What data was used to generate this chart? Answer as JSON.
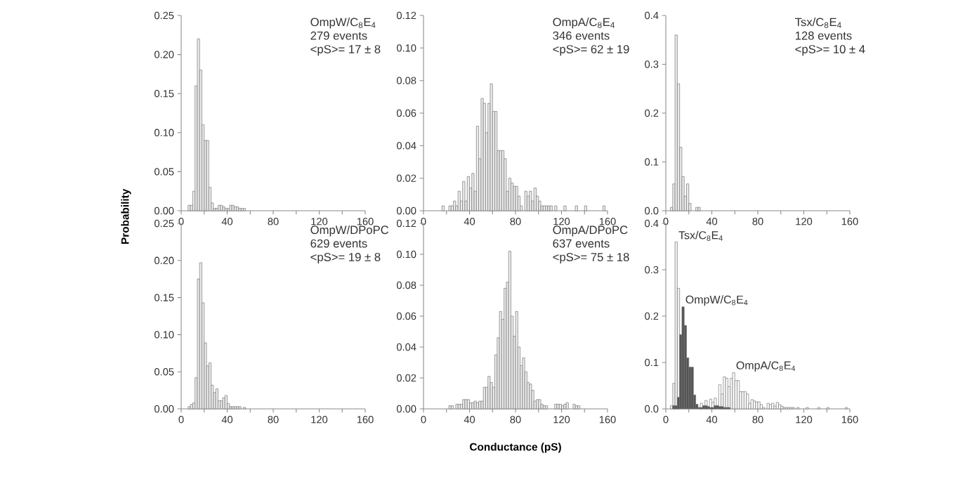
{
  "chart_data": [
    {
      "type": "histogram",
      "annotations": [
        "OmpW/C$_{8}$E$_{4}$",
        "279 events",
        "<pS>= 17 ± 8"
      ],
      "ylabel": "Probability",
      "color": "#ececec",
      "bins": [
        6,
        8,
        10,
        12,
        14,
        16,
        18,
        20,
        22,
        24,
        26,
        28,
        30,
        32,
        34,
        36,
        38,
        40,
        42,
        44,
        46,
        48,
        50,
        52,
        54,
        56
      ],
      "values": [
        0.007,
        0.007,
        0.025,
        0.16,
        0.22,
        0.18,
        0.11,
        0.09,
        0.09,
        0.03,
        0.01,
        0.003,
        0.003,
        0.007,
        0.007,
        0.005,
        0.003,
        0.003,
        0.007,
        0.007,
        0.005,
        0.005,
        0.003,
        0.003,
        0.003
      ],
      "xlim": [
        0,
        160
      ],
      "ylim": [
        0,
        0.25
      ],
      "xticks": [
        0,
        {
          "value": 20,
          "label": null
        },
        40,
        {
          "value": 60,
          "label": null
        },
        80,
        {
          "value": 100,
          "label": null
        },
        120,
        {
          "value": 140,
          "label": null
        },
        160
      ],
      "yticks": [
        {
          "value": 0,
          "label": "0.00"
        },
        {
          "value": 0.05,
          "label": "0.05"
        },
        {
          "value": 0.1,
          "label": "0.10"
        },
        {
          "value": 0.15,
          "label": "0.15"
        },
        {
          "value": 0.2,
          "label": "0.20"
        },
        {
          "value": 0.25,
          "label": "0.25"
        }
      ]
    },
    {
      "type": "histogram",
      "annotations": [
        "OmpA/C$_{8}$E$_{4}$",
        "346 events",
        "<pS>= 62 ± 19"
      ],
      "color": "#ececec",
      "bins": [
        14,
        16,
        18,
        20,
        22,
        24,
        26,
        28,
        30,
        32,
        34,
        36,
        38,
        40,
        42,
        44,
        46,
        48,
        50,
        52,
        54,
        56,
        58,
        60,
        62,
        64,
        66,
        68,
        70,
        72,
        74,
        76,
        78,
        80,
        82,
        84,
        86,
        88,
        90,
        92,
        94,
        96,
        98,
        100,
        102,
        104,
        106,
        108,
        110,
        112,
        114,
        116,
        118,
        120,
        122,
        124,
        126,
        128,
        130,
        132,
        134,
        136,
        138,
        140,
        142,
        144,
        146,
        148,
        150,
        152,
        154,
        156,
        158
      ],
      "values": [
        0,
        0.003,
        0,
        0,
        0.003,
        0.003,
        0.006,
        0.003,
        0.012,
        0.006,
        0.018,
        0.006,
        0.021,
        0.014,
        0.023,
        0.012,
        0.052,
        0.032,
        0.069,
        0.066,
        0.048,
        0.066,
        0.078,
        0.061,
        0.061,
        0.037,
        0.037,
        0.037,
        0.032,
        0.012,
        0.02,
        0.017,
        0.015,
        0.015,
        0.009,
        0.003,
        0,
        0.012,
        0.009,
        0.012,
        0.006,
        0.014,
        0.009,
        0.006,
        0.003,
        0.003,
        0.003,
        0.003,
        0.003,
        0,
        0.003,
        0,
        0,
        0,
        0.003,
        0,
        0,
        0,
        0,
        0.003,
        0,
        0,
        0,
        0.003,
        0,
        0,
        0,
        0,
        0,
        0,
        0,
        0.003
      ],
      "xlim": [
        0,
        160
      ],
      "ylim": [
        0,
        0.12
      ],
      "xticks": [
        0,
        {
          "value": 20,
          "label": null
        },
        40,
        {
          "value": 60,
          "label": null
        },
        80,
        {
          "value": 100,
          "label": null
        },
        120,
        {
          "value": 140,
          "label": null
        },
        160
      ],
      "yticks": [
        {
          "value": 0,
          "label": "0.00"
        },
        {
          "value": 0.02,
          "label": "0.02"
        },
        {
          "value": 0.04,
          "label": "0.04"
        },
        {
          "value": 0.06,
          "label": "0.06"
        },
        {
          "value": 0.08,
          "label": "0.08"
        },
        {
          "value": 0.1,
          "label": "0.10"
        },
        {
          "value": 0.12,
          "label": "0.12"
        }
      ]
    },
    {
      "type": "histogram",
      "annotations": [
        "Tsx/C$_{8}$E$_{4}$",
        "128 events",
        "<pS>= 10 ± 4"
      ],
      "color": "#ececec",
      "bins": [
        4,
        6,
        8,
        10,
        12,
        14,
        16,
        18,
        20,
        22,
        24,
        26,
        28,
        30
      ],
      "values": [
        0.007,
        0.055,
        0.36,
        0.26,
        0.13,
        0.07,
        0.03,
        0.055,
        0.015,
        0,
        0,
        0.007,
        0.007
      ],
      "xlim": [
        0,
        160
      ],
      "ylim": [
        0,
        0.4
      ],
      "xticks": [
        0,
        {
          "value": 20,
          "label": null
        },
        40,
        {
          "value": 60,
          "label": null
        },
        80,
        {
          "value": 100,
          "label": null
        },
        120,
        {
          "value": 140,
          "label": null
        },
        160
      ],
      "yticks": [
        {
          "value": 0,
          "label": "0.0"
        },
        {
          "value": 0.1,
          "label": "0.1"
        },
        {
          "value": 0.2,
          "label": "0.2"
        },
        {
          "value": 0.3,
          "label": "0.3"
        },
        {
          "value": 0.4,
          "label": "0.4"
        }
      ]
    },
    {
      "type": "histogram",
      "annotations": [
        "OmpW/DPoPC",
        "629 events",
        "<pS>= 19 ± 8"
      ],
      "color": "#ececec",
      "bins": [
        6,
        8,
        10,
        12,
        14,
        16,
        18,
        20,
        22,
        24,
        26,
        28,
        30,
        32,
        34,
        36,
        38,
        40,
        42,
        44,
        46,
        48,
        50,
        52,
        54,
        56
      ],
      "values": [
        0.003,
        0.006,
        0.008,
        0.042,
        0.175,
        0.197,
        0.143,
        0.089,
        0.058,
        0.062,
        0.032,
        0.022,
        0.027,
        0.011,
        0.011,
        0.015,
        0.018,
        0.007,
        0.003,
        0.003,
        0.003,
        0.003,
        0.003,
        0,
        0.002
      ],
      "xlim": [
        0,
        160
      ],
      "ylim": [
        0,
        0.25
      ],
      "xticks": [
        0,
        {
          "value": 20,
          "label": null
        },
        40,
        {
          "value": 60,
          "label": null
        },
        80,
        {
          "value": 100,
          "label": null
        },
        120,
        {
          "value": 140,
          "label": null
        },
        160
      ],
      "yticks": [
        {
          "value": 0,
          "label": "0.00"
        },
        {
          "value": 0.05,
          "label": "0.05"
        },
        {
          "value": 0.1,
          "label": "0.10"
        },
        {
          "value": 0.15,
          "label": "0.15"
        },
        {
          "value": 0.2,
          "label": "0.20"
        },
        {
          "value": 0.25,
          "label": "0.25"
        }
      ]
    },
    {
      "type": "histogram",
      "annotations": [
        "OmpA/DPoPC",
        "637 events",
        "<pS>= 75 ± 18"
      ],
      "xlabel": "Conductance (pS)",
      "color": "#ececec",
      "bins": [
        22,
        24,
        26,
        28,
        30,
        32,
        34,
        36,
        38,
        40,
        42,
        44,
        46,
        48,
        50,
        52,
        54,
        56,
        58,
        60,
        62,
        64,
        66,
        68,
        70,
        72,
        74,
        76,
        78,
        80,
        82,
        84,
        86,
        88,
        90,
        92,
        94,
        96,
        98,
        100,
        102,
        104,
        106,
        108,
        110,
        112,
        114,
        116,
        118,
        120,
        122,
        124,
        126,
        128,
        130,
        132,
        134,
        136,
        138
      ],
      "values": [
        0.002,
        0.002,
        0,
        0.003,
        0.003,
        0.003,
        0.006,
        0.006,
        0.006,
        0.004,
        0.004,
        0.005,
        0.004,
        0.005,
        0.005,
        0.014,
        0.014,
        0.021,
        0.017,
        0.014,
        0.035,
        0.046,
        0.063,
        0.058,
        0.078,
        0.082,
        0.102,
        0.06,
        0.047,
        0.063,
        0.04,
        0.028,
        0.033,
        0.024,
        0.017,
        0.016,
        0.012,
        0.005,
        0.006,
        0.006,
        0.003,
        0.002,
        0.002,
        0,
        0,
        0,
        0.003,
        0.003,
        0.003,
        0.002,
        0.003,
        0.004,
        0,
        0,
        0.003,
        0.002,
        0.002,
        0
      ],
      "xlim": [
        0,
        160
      ],
      "ylim": [
        0,
        0.12
      ],
      "xticks": [
        0,
        {
          "value": 20,
          "label": null
        },
        40,
        {
          "value": 60,
          "label": null
        },
        80,
        {
          "value": 100,
          "label": null
        },
        120,
        {
          "value": 140,
          "label": null
        },
        160
      ],
      "yticks": [
        {
          "value": 0,
          "label": "0.00"
        },
        {
          "value": 0.02,
          "label": "0.02"
        },
        {
          "value": 0.04,
          "label": "0.04"
        },
        {
          "value": 0.06,
          "label": "0.06"
        },
        {
          "value": 0.08,
          "label": "0.08"
        },
        {
          "value": 0.1,
          "label": "0.10"
        },
        {
          "value": 0.12,
          "label": "0.12"
        }
      ]
    },
    {
      "type": "histogram",
      "xlim": [
        0,
        160
      ],
      "ylim": [
        0,
        0.4
      ],
      "xticks": [
        0,
        {
          "value": 20,
          "label": null
        },
        40,
        {
          "value": 60,
          "label": null
        },
        80,
        {
          "value": 100,
          "label": null
        },
        120,
        {
          "value": 140,
          "label": null
        },
        160
      ],
      "yticks": [
        {
          "value": 0,
          "label": "0.0"
        },
        {
          "value": 0.1,
          "label": "0.1"
        },
        {
          "value": 0.2,
          "label": "0.2"
        },
        {
          "value": 0.3,
          "label": "0.3"
        },
        {
          "value": 0.4,
          "label": "0.4"
        }
      ],
      "bins": [
        4,
        6,
        8,
        10,
        12,
        14,
        16,
        18,
        20,
        22,
        24,
        26,
        28,
        30,
        32,
        34,
        36,
        38,
        40,
        42,
        44,
        46,
        48,
        50,
        52,
        54,
        56,
        58,
        60,
        62,
        64,
        66,
        68,
        70,
        72,
        74,
        76,
        78,
        80,
        82,
        84,
        86,
        88,
        90,
        92,
        94,
        96,
        98,
        100,
        102,
        104,
        106,
        108,
        110,
        112,
        114,
        116,
        118,
        120,
        122,
        124,
        126,
        128,
        130,
        132,
        134,
        136,
        138,
        140,
        142,
        144,
        146,
        148,
        150,
        152,
        154,
        156,
        158,
        160
      ],
      "series": [
        {
          "name": "Tsx/C$_{8}$E$_{4}$",
          "color": "#f2f2f2",
          "values": [
            0.007,
            0.055,
            0.36,
            0.26,
            null,
            null,
            null,
            null,
            null,
            0,
            0,
            null,
            null,
            null,
            null,
            null,
            null,
            null,
            null,
            null,
            null,
            null,
            null,
            null,
            null,
            null,
            null,
            null,
            null,
            null,
            null,
            null,
            null,
            null,
            null,
            null,
            null,
            null,
            null,
            null,
            null,
            null,
            null,
            null,
            null,
            null,
            null,
            null,
            null,
            null,
            null,
            null,
            null,
            null,
            null,
            null,
            null,
            null,
            null,
            null,
            null,
            null,
            null,
            null,
            null,
            null,
            null,
            null,
            null,
            null,
            null,
            null,
            null,
            null,
            null,
            null,
            null,
            null
          ]
        },
        {
          "name": "OmpA/C$_{8}$E$_{4}$",
          "color": "#ffffff",
          "values": [
            null,
            null,
            null,
            null,
            null,
            0,
            null,
            0,
            0,
            null,
            null,
            null,
            null,
            0.012,
            null,
            0.018,
            null,
            0.021,
            0.014,
            0.023,
            null,
            0.052,
            0.032,
            0.069,
            0.066,
            0.048,
            0.066,
            0.078,
            0.061,
            0.061,
            0.037,
            0.037,
            0.037,
            0.032,
            0.012,
            0.02,
            0.017,
            0.015,
            0.015,
            0.009,
            0.003,
            0,
            0.012,
            0.009,
            0.012,
            0.006,
            0.014,
            0.009,
            0.006,
            0.003,
            0.003,
            0.003,
            0.003,
            0.003,
            0,
            0.003,
            0,
            0,
            0,
            0.003,
            0,
            0,
            0,
            0,
            0.003,
            0,
            0,
            0,
            0.003,
            0,
            0,
            0,
            0,
            0,
            0,
            0,
            0.003,
            null
          ]
        },
        {
          "name": "OmpW/C$_{8}$E$_{4}$",
          "color": "#555555",
          "values": [
            null,
            0.007,
            0.007,
            0.025,
            0.16,
            0.22,
            0.18,
            0.11,
            0.09,
            0.09,
            0.03,
            0.01,
            0.003,
            0.003,
            0.007,
            0.007,
            0.005,
            0.003,
            0.003,
            0.007,
            0.007,
            0.005,
            0.005,
            0.003,
            0.003,
            0.003,
            null,
            null,
            null,
            null,
            null,
            null,
            null,
            null,
            null,
            null,
            null,
            null,
            null,
            null,
            null,
            null,
            null,
            null,
            null,
            null,
            null,
            null,
            null,
            null,
            null,
            null,
            null,
            null,
            null,
            null,
            null,
            null,
            null,
            null,
            null,
            null,
            null,
            null,
            null,
            null,
            null,
            null,
            null,
            null,
            null,
            null,
            null,
            null,
            null,
            null,
            null,
            null
          ]
        }
      ]
    }
  ]
}
